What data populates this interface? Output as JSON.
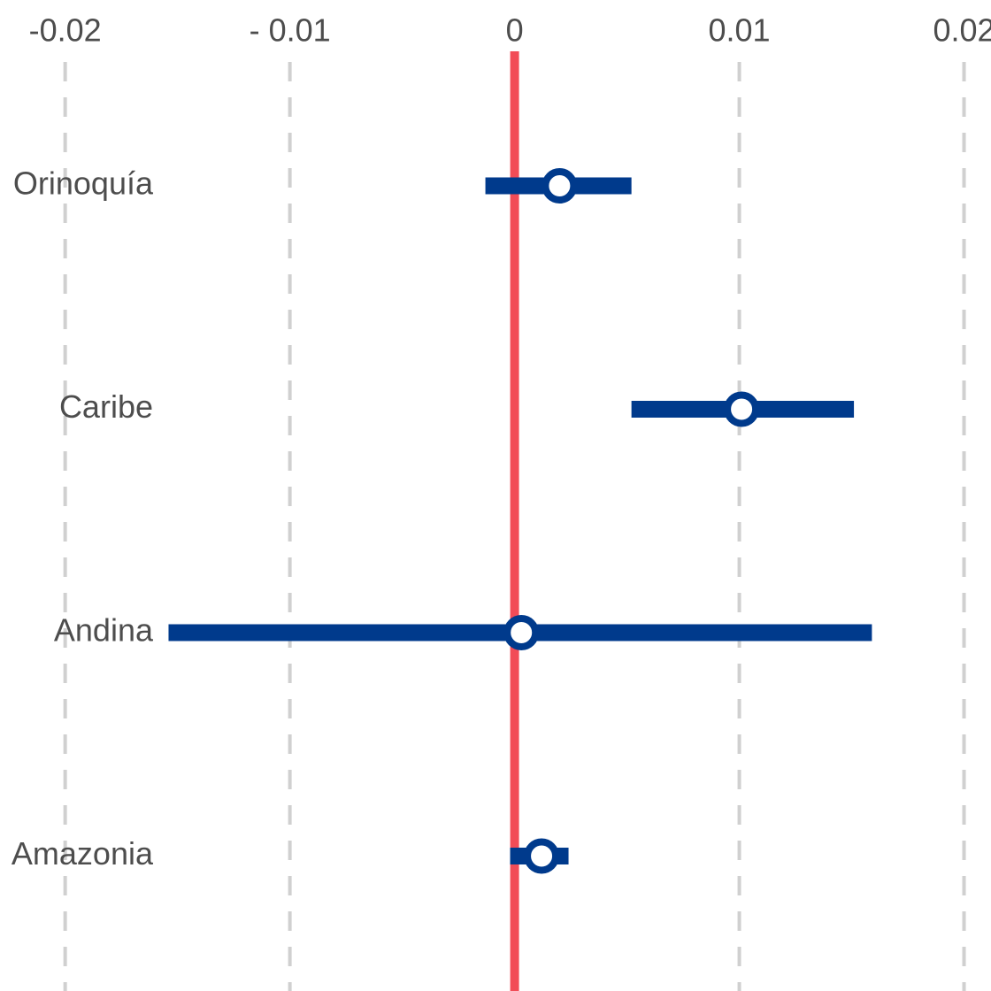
{
  "chart_data": {
    "type": "forest",
    "title": "",
    "xlabel": "",
    "ylabel": "",
    "xlim": [
      -0.0229,
      0.0212
    ],
    "ticks": [
      {
        "value": -0.02,
        "label": "-0.02"
      },
      {
        "value": -0.01,
        "label": "- 0.01"
      },
      {
        "value": 0,
        "label": "0"
      },
      {
        "value": 0.01,
        "label": "0.01"
      },
      {
        "value": 0.02,
        "label": "0.02"
      }
    ],
    "reference_line": 0,
    "grid": true,
    "categories": [
      "Orinoquía",
      "Caribe",
      "Andina",
      "Amazonia"
    ],
    "estimates": [
      {
        "category": "Orinoquía",
        "estimate": 0.002,
        "lower": -0.0013,
        "upper": 0.0052
      },
      {
        "category": "Caribe",
        "estimate": 0.0101,
        "lower": 0.0052,
        "upper": 0.0151
      },
      {
        "category": "Andina",
        "estimate": 0.0003,
        "lower": -0.0154,
        "upper": 0.0159
      },
      {
        "category": "Amazonia",
        "estimate": 0.0012,
        "lower": -0.0002,
        "upper": 0.0024
      }
    ],
    "colors": {
      "interval": "#003a8c",
      "reference_line": "#f24c57",
      "marker_fill": "#ffffff"
    }
  }
}
